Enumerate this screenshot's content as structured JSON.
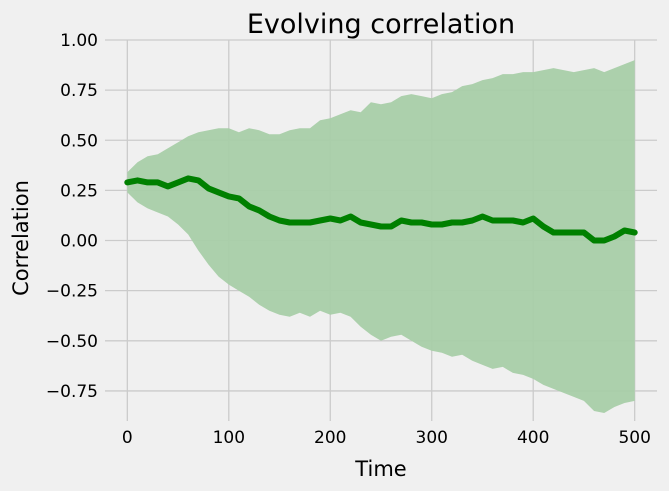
{
  "chart_data": {
    "type": "line",
    "title": "Evolving correlation",
    "xlabel": "Time",
    "ylabel": "Correlation",
    "xlim": [
      -22,
      522
    ],
    "ylim": [
      -0.9,
      1.0
    ],
    "xticks": [
      0,
      100,
      200,
      300,
      400,
      500
    ],
    "yticks": [
      -0.75,
      -0.5,
      -0.25,
      0.0,
      0.25,
      0.5,
      0.75,
      1.0
    ],
    "xtick_labels": [
      "0",
      "100",
      "200",
      "300",
      "400",
      "500"
    ],
    "ytick_labels": [
      "−0.75",
      "−0.50",
      "−0.25",
      "0.00",
      "0.25",
      "0.50",
      "0.75",
      "1.00"
    ],
    "grid": true,
    "colors": {
      "line": "#008000",
      "band": "#a8cda8",
      "background": "#f0f0f0",
      "grid": "#cbcbcb"
    },
    "series": [
      {
        "role": "correlation",
        "x": [
          0,
          10,
          20,
          30,
          40,
          50,
          60,
          70,
          80,
          90,
          100,
          110,
          120,
          130,
          140,
          150,
          160,
          170,
          180,
          190,
          200,
          210,
          220,
          230,
          240,
          250,
          260,
          270,
          280,
          290,
          300,
          310,
          320,
          330,
          340,
          350,
          360,
          370,
          380,
          390,
          400,
          410,
          420,
          430,
          440,
          450,
          460,
          470,
          480,
          490,
          500
        ],
        "values": [
          0.29,
          0.3,
          0.29,
          0.29,
          0.27,
          0.29,
          0.31,
          0.3,
          0.26,
          0.24,
          0.22,
          0.21,
          0.17,
          0.15,
          0.12,
          0.1,
          0.09,
          0.09,
          0.09,
          0.1,
          0.11,
          0.1,
          0.12,
          0.09,
          0.08,
          0.07,
          0.07,
          0.1,
          0.09,
          0.09,
          0.08,
          0.08,
          0.09,
          0.09,
          0.1,
          0.12,
          0.1,
          0.1,
          0.1,
          0.09,
          0.11,
          0.07,
          0.04,
          0.04,
          0.04,
          0.04,
          0.0,
          0.0,
          0.02,
          0.05,
          0.04
        ]
      },
      {
        "role": "band-upper",
        "x": [
          0,
          10,
          20,
          30,
          40,
          50,
          60,
          70,
          80,
          90,
          100,
          110,
          120,
          130,
          140,
          150,
          160,
          170,
          180,
          190,
          200,
          210,
          220,
          230,
          240,
          250,
          260,
          270,
          280,
          290,
          300,
          310,
          320,
          330,
          340,
          350,
          360,
          370,
          380,
          390,
          400,
          410,
          420,
          430,
          440,
          450,
          460,
          470,
          480,
          490,
          500
        ],
        "values": [
          0.34,
          0.39,
          0.42,
          0.43,
          0.46,
          0.49,
          0.52,
          0.54,
          0.55,
          0.56,
          0.56,
          0.54,
          0.56,
          0.55,
          0.53,
          0.53,
          0.55,
          0.56,
          0.56,
          0.6,
          0.61,
          0.63,
          0.65,
          0.64,
          0.69,
          0.68,
          0.69,
          0.72,
          0.73,
          0.72,
          0.71,
          0.73,
          0.74,
          0.77,
          0.78,
          0.8,
          0.81,
          0.83,
          0.83,
          0.84,
          0.84,
          0.85,
          0.86,
          0.85,
          0.84,
          0.85,
          0.86,
          0.84,
          0.86,
          0.88,
          0.9
        ]
      },
      {
        "role": "band-lower",
        "x": [
          0,
          10,
          20,
          30,
          40,
          50,
          60,
          70,
          80,
          90,
          100,
          110,
          120,
          130,
          140,
          150,
          160,
          170,
          180,
          190,
          200,
          210,
          220,
          230,
          240,
          250,
          260,
          270,
          280,
          290,
          300,
          310,
          320,
          330,
          340,
          350,
          360,
          370,
          380,
          390,
          400,
          410,
          420,
          430,
          440,
          450,
          460,
          470,
          480,
          490,
          500
        ],
        "values": [
          0.24,
          0.19,
          0.16,
          0.14,
          0.12,
          0.08,
          0.03,
          -0.05,
          -0.12,
          -0.18,
          -0.22,
          -0.25,
          -0.28,
          -0.32,
          -0.35,
          -0.37,
          -0.38,
          -0.36,
          -0.38,
          -0.35,
          -0.37,
          -0.36,
          -0.38,
          -0.43,
          -0.47,
          -0.5,
          -0.48,
          -0.47,
          -0.5,
          -0.53,
          -0.55,
          -0.56,
          -0.58,
          -0.57,
          -0.6,
          -0.62,
          -0.64,
          -0.63,
          -0.66,
          -0.67,
          -0.69,
          -0.72,
          -0.74,
          -0.76,
          -0.78,
          -0.8,
          -0.85,
          -0.86,
          -0.83,
          -0.81,
          -0.8
        ]
      }
    ]
  }
}
